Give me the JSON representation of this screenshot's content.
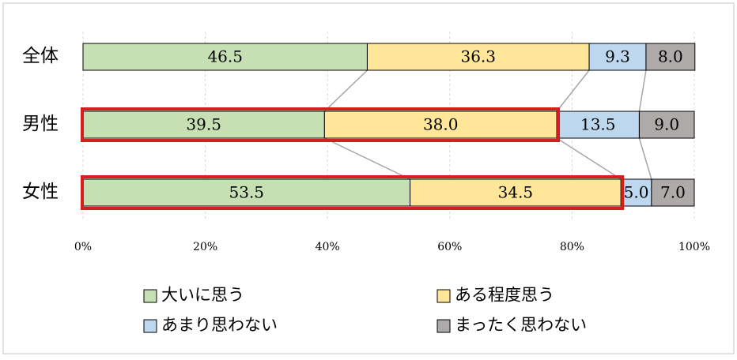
{
  "chart_data": {
    "type": "stacked_barh",
    "categories": [
      "全体",
      "男性",
      "女性"
    ],
    "series": [
      {
        "name": "大いに思う",
        "color": "#c6e0b4",
        "values": [
          46.5,
          39.5,
          53.5
        ],
        "value_labels": [
          "46.5",
          "39.5",
          "53.5"
        ]
      },
      {
        "name": "ある程度思う",
        "color": "#ffe699",
        "values": [
          36.3,
          38.0,
          34.5
        ],
        "value_labels": [
          "36.3",
          "38.0",
          "34.5"
        ]
      },
      {
        "name": "あまり思わない",
        "color": "#bdd7ee",
        "values": [
          9.3,
          13.5,
          5.0
        ],
        "value_labels": [
          "9.3",
          "13.5",
          "5.0"
        ]
      },
      {
        "name": "まったく思わない",
        "color": "#aeaaaa",
        "values": [
          8.0,
          9.0,
          7.0
        ],
        "value_labels": [
          "8.0",
          "9.0",
          "7.0"
        ]
      }
    ],
    "xlim": [
      0,
      100
    ],
    "xticks": [
      {
        "value": 0,
        "label": "0%"
      },
      {
        "value": 20,
        "label": "20%"
      },
      {
        "value": 40,
        "label": "40%"
      },
      {
        "value": 60,
        "label": "60%"
      },
      {
        "value": 80,
        "label": "80%"
      },
      {
        "value": 100,
        "label": "100%"
      }
    ],
    "grid": true
  }
}
